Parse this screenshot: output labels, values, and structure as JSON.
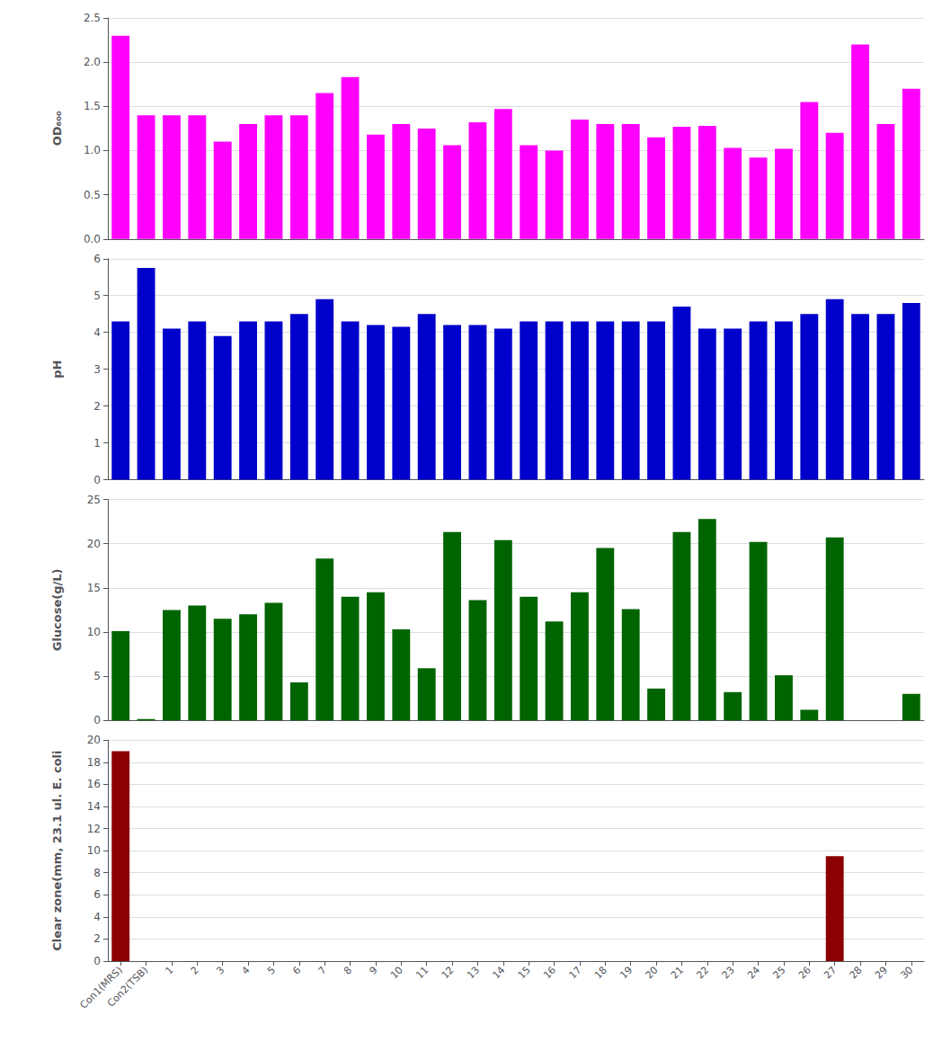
{
  "chart_data": [
    {
      "type": "bar",
      "ylabel": "OD₆₀₀",
      "categories": [
        "Con1(MRS)",
        "Con2(TSB)",
        "1",
        "2",
        "3",
        "4",
        "5",
        "6",
        "7",
        "8",
        "9",
        "10",
        "11",
        "12",
        "13",
        "14",
        "15",
        "16",
        "17",
        "18",
        "19",
        "20",
        "21",
        "22",
        "23",
        "24",
        "25",
        "26",
        "27",
        "28",
        "29",
        "30"
      ],
      "values": [
        2.3,
        1.4,
        1.4,
        1.4,
        1.1,
        1.3,
        1.4,
        1.4,
        1.65,
        1.83,
        1.18,
        1.3,
        1.25,
        1.06,
        1.32,
        1.47,
        1.06,
        1.0,
        1.35,
        1.3,
        1.3,
        1.15,
        1.27,
        1.28,
        1.03,
        0.92,
        1.02,
        1.55,
        1.2,
        2.2,
        1.3,
        1.7
      ],
      "color": "#FF00FF",
      "ylim": [
        0,
        2.5
      ],
      "yticks": [
        {
          "value": 0,
          "label": "0.0"
        },
        0.5,
        {
          "value": 1,
          "label": "1.0"
        },
        1.5,
        {
          "value": 2,
          "label": "2.0"
        },
        2.5
      ],
      "grid": true,
      "tick_labels": "y"
    },
    {
      "type": "bar",
      "ylabel": "pH",
      "categories": [
        "Con1(MRS)",
        "Con2(TSB)",
        "1",
        "2",
        "3",
        "4",
        "5",
        "6",
        "7",
        "8",
        "9",
        "10",
        "11",
        "12",
        "13",
        "14",
        "15",
        "16",
        "17",
        "18",
        "19",
        "20",
        "21",
        "22",
        "23",
        "24",
        "25",
        "26",
        "27",
        "28",
        "29",
        "30"
      ],
      "values": [
        4.3,
        5.75,
        4.1,
        4.3,
        3.9,
        4.3,
        4.3,
        4.5,
        4.9,
        4.3,
        4.2,
        4.15,
        4.5,
        4.2,
        4.2,
        4.1,
        4.3,
        4.3,
        4.3,
        4.3,
        4.3,
        4.3,
        4.7,
        4.1,
        4.1,
        4.3,
        4.3,
        4.5,
        4.9,
        4.5,
        4.5,
        4.8
      ],
      "color": "#0000CC",
      "ylim": [
        0,
        6
      ],
      "yticks": [
        0,
        1,
        2,
        3,
        4,
        5,
        6
      ],
      "grid": true,
      "tick_labels": "y"
    },
    {
      "type": "bar",
      "ylabel": "Glucose(g/L)",
      "categories": [
        "Con1(MRS)",
        "Con2(TSB)",
        "1",
        "2",
        "3",
        "4",
        "5",
        "6",
        "7",
        "8",
        "9",
        "10",
        "11",
        "12",
        "13",
        "14",
        "15",
        "16",
        "17",
        "18",
        "19",
        "20",
        "21",
        "22",
        "23",
        "24",
        "25",
        "26",
        "27",
        "28",
        "29",
        "30"
      ],
      "values": [
        10.1,
        0.15,
        12.5,
        13.0,
        11.5,
        12.0,
        13.3,
        4.3,
        18.3,
        14.0,
        14.5,
        10.3,
        5.9,
        21.3,
        13.6,
        20.4,
        14.0,
        11.2,
        14.5,
        19.5,
        12.6,
        3.6,
        21.3,
        22.8,
        3.2,
        20.2,
        5.1,
        1.2,
        20.7,
        0.0,
        0.0,
        3.0
      ],
      "color": "#006400",
      "ylim": [
        0,
        25
      ],
      "yticks": [
        0,
        5,
        10,
        15,
        20,
        25
      ],
      "grid": true,
      "tick_labels": "y"
    },
    {
      "type": "bar",
      "ylabel": "Clear zone(mm, 23.1 ul. E. coli",
      "categories": [
        "Con1(MRS)",
        "Con2(TSB)",
        "1",
        "2",
        "3",
        "4",
        "5",
        "6",
        "7",
        "8",
        "9",
        "10",
        "11",
        "12",
        "13",
        "14",
        "15",
        "16",
        "17",
        "18",
        "19",
        "20",
        "21",
        "22",
        "23",
        "24",
        "25",
        "26",
        "27",
        "28",
        "29",
        "30"
      ],
      "values": [
        19.0,
        0.0,
        0.0,
        0.0,
        0.0,
        0.0,
        0.0,
        0.0,
        0.0,
        0.0,
        0.0,
        0.0,
        0.0,
        0.0,
        0.0,
        0.0,
        0.0,
        0.0,
        0.0,
        0.0,
        0.0,
        0.0,
        0.0,
        0.0,
        0.0,
        0.0,
        0.0,
        0.0,
        9.5,
        0.0,
        0.0,
        0.0
      ],
      "color": "#8B0000",
      "ylim": [
        0,
        20
      ],
      "yticks": [
        0,
        2,
        4,
        6,
        8,
        10,
        12,
        14,
        16,
        18,
        20
      ],
      "grid": true
    }
  ]
}
